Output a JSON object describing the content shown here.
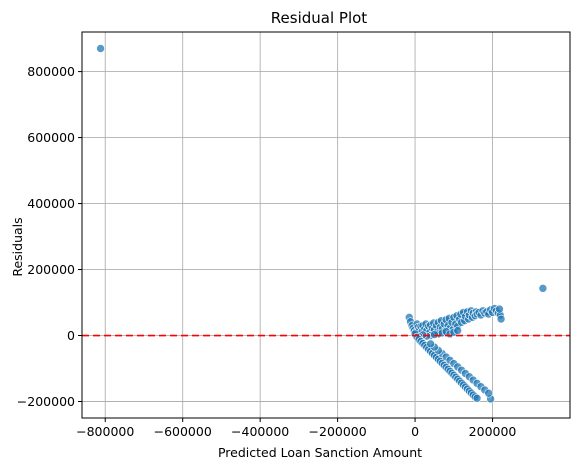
{
  "chart_data": {
    "type": "scatter",
    "title": "Residual Plot",
    "xlabel": "Predicted Loan Sanction Amount",
    "ylabel": "Residuals",
    "xlim": [
      -860000,
      400000
    ],
    "ylim": [
      -250000,
      920000
    ],
    "xticks": [
      -800000,
      -600000,
      -400000,
      -200000,
      0,
      200000
    ],
    "yticks": [
      -200000,
      0,
      200000,
      400000,
      600000,
      800000
    ],
    "xtick_labels": [
      "−800000",
      "−600000",
      "−400000",
      "−200000",
      "0",
      "200000"
    ],
    "ytick_labels": [
      "−200000",
      "0",
      "200000",
      "400000",
      "600000",
      "800000"
    ],
    "grid": true,
    "reference_line": {
      "y": 0,
      "color": "#ff0000",
      "style": "dashed"
    },
    "point_color": "#1f77b4",
    "series": [
      {
        "points": [
          [
            -812000,
            870000
          ],
          [
            330000,
            143000
          ],
          [
            -15000,
            55000
          ],
          [
            -12000,
            42000
          ],
          [
            -8000,
            30000
          ],
          [
            -5000,
            22000
          ],
          [
            -2000,
            15000
          ],
          [
            2000,
            10000
          ],
          [
            5000,
            35000
          ],
          [
            8000,
            25000
          ],
          [
            12000,
            18000
          ],
          [
            15000,
            28000
          ],
          [
            18000,
            12000
          ],
          [
            20000,
            30000
          ],
          [
            25000,
            20000
          ],
          [
            28000,
            35000
          ],
          [
            30000,
            15000
          ],
          [
            35000,
            28000
          ],
          [
            38000,
            10000
          ],
          [
            40000,
            32000
          ],
          [
            45000,
            22000
          ],
          [
            48000,
            38000
          ],
          [
            50000,
            18000
          ],
          [
            55000,
            30000
          ],
          [
            58000,
            12000
          ],
          [
            60000,
            40000
          ],
          [
            65000,
            25000
          ],
          [
            68000,
            45000
          ],
          [
            70000,
            20000
          ],
          [
            75000,
            35000
          ],
          [
            78000,
            15000
          ],
          [
            80000,
            48000
          ],
          [
            85000,
            30000
          ],
          [
            88000,
            52000
          ],
          [
            90000,
            22000
          ],
          [
            95000,
            40000
          ],
          [
            98000,
            18000
          ],
          [
            100000,
            55000
          ],
          [
            105000,
            35000
          ],
          [
            108000,
            60000
          ],
          [
            110000,
            28000
          ],
          [
            115000,
            50000
          ],
          [
            118000,
            65000
          ],
          [
            120000,
            40000
          ],
          [
            125000,
            70000
          ],
          [
            128000,
            45000
          ],
          [
            130000,
            58000
          ],
          [
            135000,
            72000
          ],
          [
            138000,
            50000
          ],
          [
            140000,
            62000
          ],
          [
            145000,
            75000
          ],
          [
            148000,
            55000
          ],
          [
            150000,
            68000
          ],
          [
            155000,
            60000
          ],
          [
            158000,
            72000
          ],
          [
            160000,
            65000
          ],
          [
            165000,
            70000
          ],
          [
            170000,
            62000
          ],
          [
            175000,
            75000
          ],
          [
            180000,
            68000
          ],
          [
            185000,
            72000
          ],
          [
            190000,
            65000
          ],
          [
            195000,
            78000
          ],
          [
            200000,
            70000
          ],
          [
            205000,
            82000
          ],
          [
            210000,
            75000
          ],
          [
            215000,
            68000
          ],
          [
            220000,
            62000
          ],
          [
            222000,
            50000
          ],
          [
            218000,
            80000
          ],
          [
            60000,
            5000
          ],
          [
            70000,
            8000
          ],
          [
            80000,
            12000
          ],
          [
            90000,
            5000
          ],
          [
            100000,
            10000
          ],
          [
            110000,
            15000
          ],
          [
            40000,
            0
          ],
          [
            50000,
            3000
          ],
          [
            30000,
            -2000
          ],
          [
            20000,
            2000
          ],
          [
            10000,
            -3000
          ],
          [
            0,
            5000
          ],
          [
            5000,
            -5000
          ],
          [
            10000,
            -12000
          ],
          [
            15000,
            -18000
          ],
          [
            20000,
            -24000
          ],
          [
            25000,
            -30000
          ],
          [
            30000,
            -36000
          ],
          [
            35000,
            -42000
          ],
          [
            40000,
            -48000
          ],
          [
            45000,
            -54000
          ],
          [
            50000,
            -60000
          ],
          [
            55000,
            -66000
          ],
          [
            60000,
            -72000
          ],
          [
            65000,
            -78000
          ],
          [
            70000,
            -84000
          ],
          [
            75000,
            -90000
          ],
          [
            80000,
            -96000
          ],
          [
            85000,
            -102000
          ],
          [
            90000,
            -108000
          ],
          [
            95000,
            -114000
          ],
          [
            100000,
            -120000
          ],
          [
            105000,
            -126000
          ],
          [
            110000,
            -132000
          ],
          [
            115000,
            -138000
          ],
          [
            120000,
            -144000
          ],
          [
            125000,
            -150000
          ],
          [
            130000,
            -156000
          ],
          [
            135000,
            -162000
          ],
          [
            140000,
            -168000
          ],
          [
            145000,
            -174000
          ],
          [
            150000,
            -180000
          ],
          [
            155000,
            -186000
          ],
          [
            160000,
            -190000
          ],
          [
            195000,
            -192000
          ],
          [
            70000,
            -55000
          ],
          [
            80000,
            -65000
          ],
          [
            90000,
            -75000
          ],
          [
            100000,
            -85000
          ],
          [
            110000,
            -95000
          ],
          [
            120000,
            -105000
          ],
          [
            130000,
            -115000
          ],
          [
            140000,
            -125000
          ],
          [
            150000,
            -135000
          ],
          [
            160000,
            -145000
          ],
          [
            170000,
            -155000
          ],
          [
            180000,
            -165000
          ],
          [
            190000,
            -175000
          ],
          [
            60000,
            -45000
          ],
          [
            50000,
            -35000
          ],
          [
            40000,
            -25000
          ]
        ]
      }
    ]
  }
}
